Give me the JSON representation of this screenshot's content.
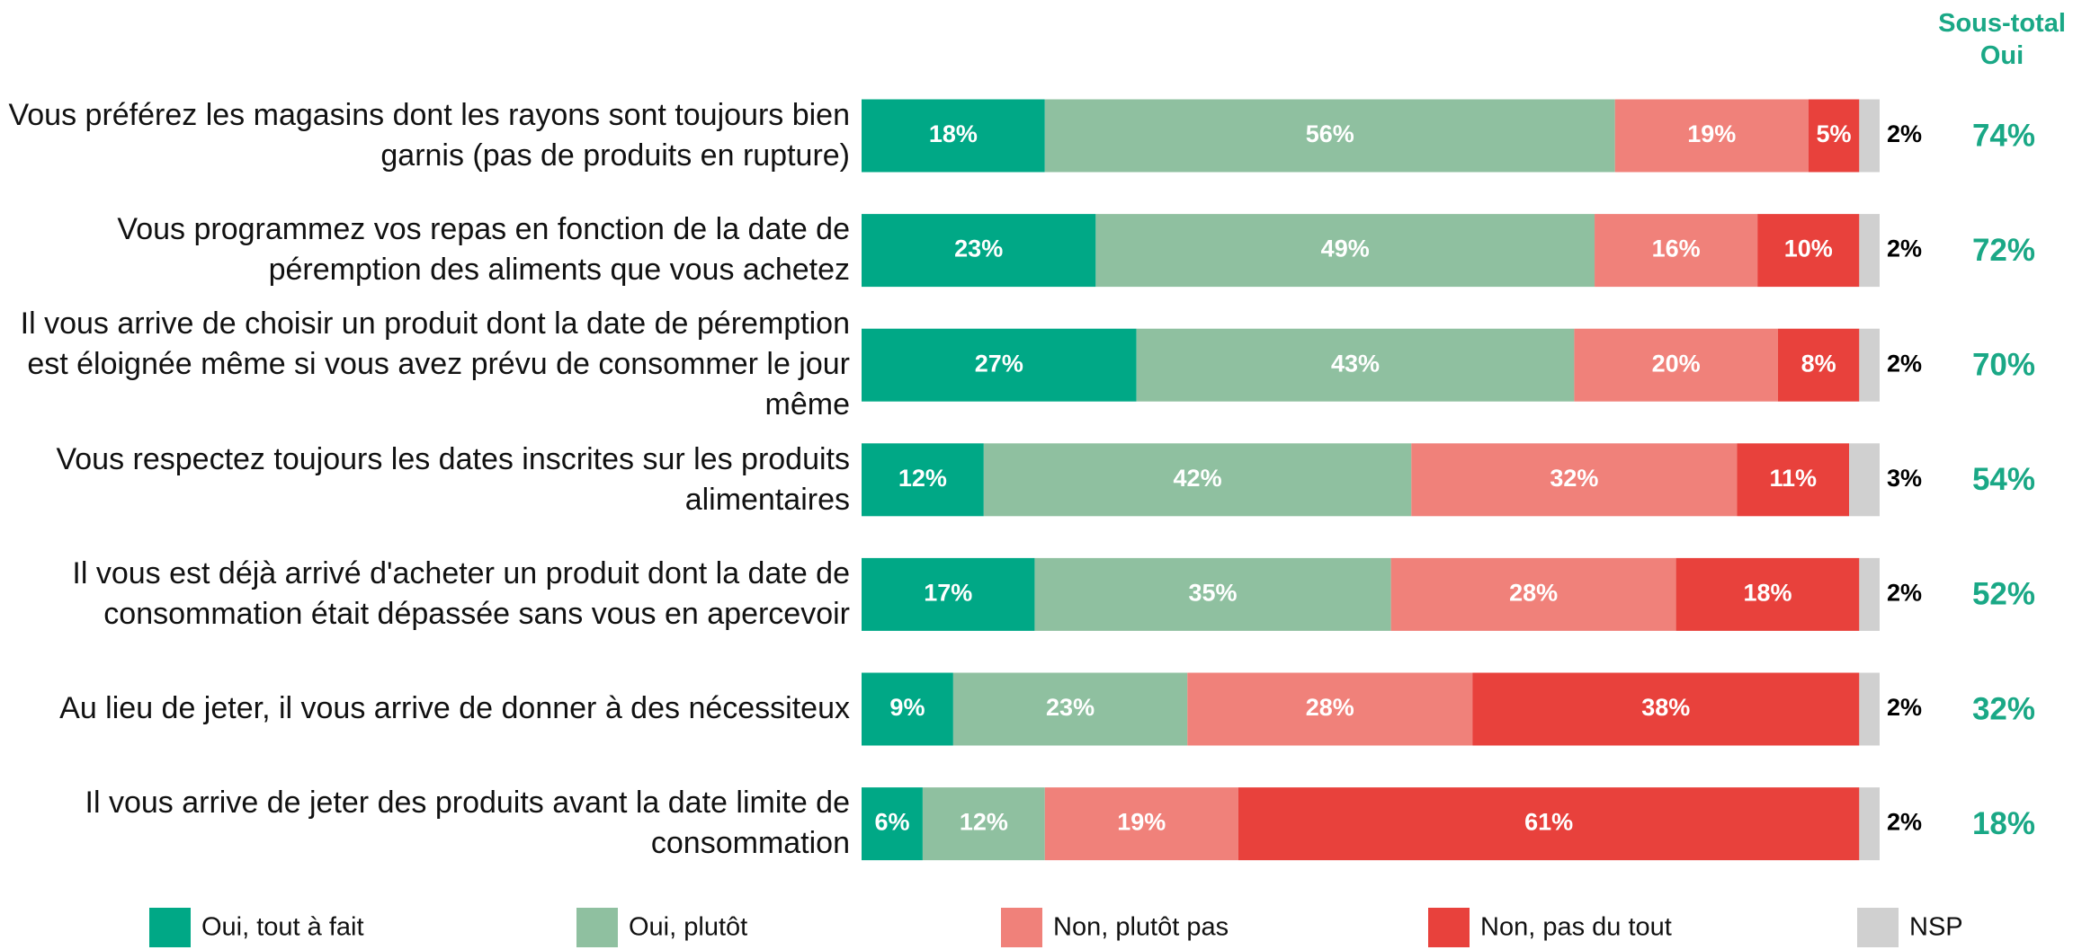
{
  "chart_data": {
    "type": "stacked_bar_horizontal",
    "categories": [
      "Vous préférez les magasins dont les rayons sont toujours bien garnis (pas de produits en rupture)",
      "Vous programmez vos repas en fonction de la date de péremption des aliments que vous achetez",
      "Il vous arrive de choisir un produit dont la date de péremption est éloignée même si vous avez prévu de consommer le jour même",
      "Vous respectez toujours les dates inscrites sur les produits alimentaires",
      "Il vous est déjà arrivé d'acheter un produit dont la date de consommation était dépassée sans vous en apercevoir",
      "Au lieu de jeter, il vous arrive de donner à des nécessiteux",
      "Il vous arrive de jeter des produits avant la date limite de consommation"
    ],
    "xlim": [
      0,
      100
    ],
    "series": [
      {
        "name": "Oui, tout à fait",
        "color": "#00a886",
        "values": [
          18,
          23,
          27,
          12,
          17,
          9,
          6
        ],
        "value_labels": [
          "18%",
          "23%",
          "27%",
          "12%",
          "17%",
          "9%",
          "6%"
        ]
      },
      {
        "name": "Oui, plutôt",
        "color": "#8fc0a0",
        "values": [
          56,
          49,
          43,
          42,
          35,
          23,
          12
        ],
        "value_labels": [
          "56%",
          "49%",
          "43%",
          "42%",
          "35%",
          "23%",
          "12%"
        ]
      },
      {
        "name": "Non, plutôt pas",
        "color": "#f0817a",
        "values": [
          19,
          16,
          20,
          32,
          28,
          28,
          19
        ],
        "value_labels": [
          "19%",
          "16%",
          "20%",
          "32%",
          "28%",
          "28%",
          "19%"
        ]
      },
      {
        "name": "Non, pas du tout",
        "color": "#e8413c",
        "values": [
          5,
          10,
          8,
          11,
          18,
          38,
          61
        ],
        "value_labels": [
          "5%",
          "10%",
          "8%",
          "11%",
          "18%",
          "38%",
          "61%"
        ]
      },
      {
        "name": "NSP",
        "color": "#d0d0d0",
        "values": [
          2,
          2,
          2,
          3,
          2,
          2,
          2
        ],
        "value_labels": [
          "2%",
          "2%",
          "2%",
          "3%",
          "2%",
          "2%",
          "2%"
        ]
      }
    ],
    "subtotal": {
      "title": "Sous-total Oui",
      "color": "#1aa886",
      "values": [
        74,
        72,
        70,
        54,
        52,
        32,
        18
      ],
      "value_labels": [
        "74%",
        "72%",
        "70%",
        "54%",
        "52%",
        "32%",
        "18%"
      ]
    }
  }
}
